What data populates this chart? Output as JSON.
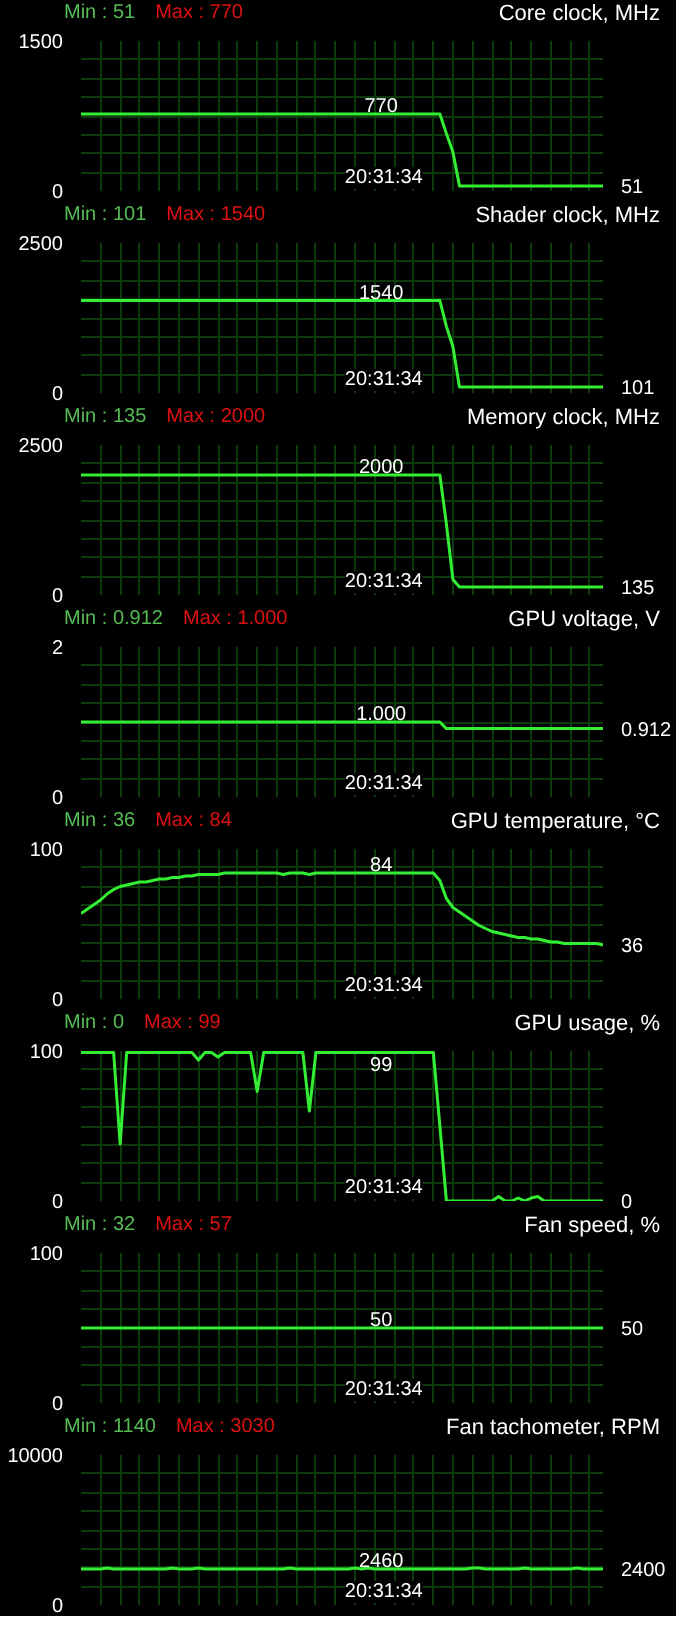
{
  "chart_data": [
    {
      "type": "line",
      "title": "Core clock, MHz",
      "categories": [
        null,
        null,
        null,
        null,
        null,
        null,
        null,
        null,
        null,
        null,
        null,
        null,
        null,
        null,
        null,
        null,
        null,
        null,
        null,
        null,
        null,
        null,
        null,
        null,
        null,
        null,
        null,
        null,
        null,
        null,
        null,
        null,
        null,
        null,
        null,
        null,
        null,
        null,
        null,
        null,
        null,
        null,
        null,
        null,
        null,
        null,
        null,
        null,
        null,
        null,
        null,
        null,
        null,
        null,
        null,
        null,
        null,
        null,
        null,
        null,
        null,
        null,
        null,
        null,
        null,
        null,
        null,
        null,
        null,
        null,
        null,
        null,
        null,
        null,
        null,
        null,
        null,
        null,
        null,
        null,
        null
      ],
      "ylim": [
        0,
        1500
      ],
      "tick_labels": "y",
      "grid": true,
      "yticks": [
        0,
        {
          "value": 187.5,
          "label": null
        },
        {
          "value": 375,
          "label": null
        },
        {
          "value": 562.5,
          "label": null
        },
        {
          "value": 750,
          "label": null
        },
        {
          "value": 937.5,
          "label": null
        },
        {
          "value": 1125,
          "label": null
        },
        {
          "value": 1312.5,
          "label": null
        },
        1500
      ],
      "series": [
        {
          "color": "#33ee33",
          "values": [
            770,
            770,
            770,
            770,
            770,
            770,
            770,
            770,
            770,
            770,
            770,
            770,
            770,
            770,
            770,
            770,
            770,
            770,
            770,
            770,
            770,
            770,
            770,
            770,
            770,
            770,
            770,
            770,
            770,
            770,
            770,
            770,
            770,
            770,
            770,
            770,
            770,
            770,
            770,
            770,
            770,
            770,
            770,
            770,
            770,
            770,
            770,
            770,
            770,
            770,
            770,
            770,
            770,
            770,
            770,
            770,
            574,
            389,
            51,
            51,
            51,
            51,
            51,
            51,
            51,
            51,
            51,
            51,
            51,
            51,
            51,
            51,
            51,
            51,
            51,
            51,
            51,
            51,
            51,
            51,
            51
          ]
        }
      ],
      "annotations": [
        "Min : 51",
        "Max : 770",
        "20:31:34",
        "51",
        "770"
      ]
    },
    {
      "type": "line",
      "title": "Shader clock, MHz",
      "categories": [
        null,
        null,
        null,
        null,
        null,
        null,
        null,
        null,
        null,
        null,
        null,
        null,
        null,
        null,
        null,
        null,
        null,
        null,
        null,
        null,
        null,
        null,
        null,
        null,
        null,
        null,
        null,
        null,
        null,
        null,
        null,
        null,
        null,
        null,
        null,
        null,
        null,
        null,
        null,
        null,
        null,
        null,
        null,
        null,
        null,
        null,
        null,
        null,
        null,
        null,
        null,
        null,
        null,
        null,
        null,
        null,
        null,
        null,
        null,
        null,
        null,
        null,
        null,
        null,
        null,
        null,
        null,
        null,
        null,
        null,
        null,
        null,
        null,
        null,
        null,
        null,
        null,
        null,
        null,
        null,
        null
      ],
      "ylim": [
        0,
        2500
      ],
      "tick_labels": "y",
      "grid": true,
      "yticks": [
        0,
        {
          "value": 312.5,
          "label": null
        },
        {
          "value": 625,
          "label": null
        },
        {
          "value": 937.5,
          "label": null
        },
        {
          "value": 1250,
          "label": null
        },
        {
          "value": 1562.5,
          "label": null
        },
        {
          "value": 1875,
          "label": null
        },
        {
          "value": 2187.5,
          "label": null
        },
        2500
      ],
      "series": [
        {
          "color": "#33ee33",
          "values": [
            1540,
            1540,
            1540,
            1540,
            1540,
            1540,
            1540,
            1540,
            1540,
            1540,
            1540,
            1540,
            1540,
            1540,
            1540,
            1540,
            1540,
            1540,
            1540,
            1540,
            1540,
            1540,
            1540,
            1540,
            1540,
            1540,
            1540,
            1540,
            1540,
            1540,
            1540,
            1540,
            1540,
            1540,
            1540,
            1540,
            1540,
            1540,
            1540,
            1540,
            1540,
            1540,
            1540,
            1540,
            1540,
            1540,
            1540,
            1540,
            1540,
            1540,
            1540,
            1540,
            1540,
            1540,
            1540,
            1540,
            1111,
            772,
            101,
            101,
            101,
            101,
            101,
            101,
            101,
            101,
            101,
            101,
            101,
            101,
            101,
            101,
            101,
            101,
            101,
            101,
            101,
            101,
            101,
            101,
            101
          ]
        }
      ],
      "annotations": [
        "Min : 101",
        "Max : 1540",
        "20:31:34",
        "101",
        "1540"
      ]
    },
    {
      "type": "line",
      "title": "Memory clock, MHz",
      "categories": [
        null,
        null,
        null,
        null,
        null,
        null,
        null,
        null,
        null,
        null,
        null,
        null,
        null,
        null,
        null,
        null,
        null,
        null,
        null,
        null,
        null,
        null,
        null,
        null,
        null,
        null,
        null,
        null,
        null,
        null,
        null,
        null,
        null,
        null,
        null,
        null,
        null,
        null,
        null,
        null,
        null,
        null,
        null,
        null,
        null,
        null,
        null,
        null,
        null,
        null,
        null,
        null,
        null,
        null,
        null,
        null,
        null,
        null,
        null,
        null,
        null,
        null,
        null,
        null,
        null,
        null,
        null,
        null,
        null,
        null,
        null,
        null,
        null,
        null,
        null,
        null,
        null,
        null,
        null,
        null,
        null
      ],
      "ylim": [
        0,
        2500
      ],
      "tick_labels": "y",
      "grid": true,
      "yticks": [
        0,
        {
          "value": 312.5,
          "label": null
        },
        {
          "value": 625,
          "label": null
        },
        {
          "value": 937.5,
          "label": null
        },
        {
          "value": 1250,
          "label": null
        },
        {
          "value": 1562.5,
          "label": null
        },
        {
          "value": 1875,
          "label": null
        },
        {
          "value": 2187.5,
          "label": null
        },
        2500
      ],
      "series": [
        {
          "color": "#33ee33",
          "values": [
            2000,
            2000,
            2000,
            2000,
            2000,
            2000,
            2000,
            2000,
            2000,
            2000,
            2000,
            2000,
            2000,
            2000,
            2000,
            2000,
            2000,
            2000,
            2000,
            2000,
            2000,
            2000,
            2000,
            2000,
            2000,
            2000,
            2000,
            2000,
            2000,
            2000,
            2000,
            2000,
            2000,
            2000,
            2000,
            2000,
            2000,
            2000,
            2000,
            2000,
            2000,
            2000,
            2000,
            2000,
            2000,
            2000,
            2000,
            2000,
            2000,
            2000,
            2000,
            2000,
            2000,
            2000,
            2000,
            2000,
            1183,
            257,
            135,
            135,
            135,
            135,
            135,
            135,
            135,
            135,
            135,
            135,
            135,
            135,
            135,
            135,
            135,
            135,
            135,
            135,
            135,
            135,
            135,
            135,
            135
          ]
        }
      ],
      "annotations": [
        "Min : 135",
        "Max : 2000",
        "20:31:34",
        "135",
        "2000"
      ]
    },
    {
      "type": "line",
      "title": "GPU voltage, V",
      "categories": [
        null,
        null,
        null,
        null,
        null,
        null,
        null,
        null,
        null,
        null,
        null,
        null,
        null,
        null,
        null,
        null,
        null,
        null,
        null,
        null,
        null,
        null,
        null,
        null,
        null,
        null,
        null,
        null,
        null,
        null,
        null,
        null,
        null,
        null,
        null,
        null,
        null,
        null,
        null,
        null,
        null,
        null,
        null,
        null,
        null,
        null,
        null,
        null,
        null,
        null,
        null,
        null,
        null,
        null,
        null,
        null,
        null,
        null,
        null,
        null,
        null,
        null,
        null,
        null,
        null,
        null,
        null,
        null,
        null,
        null,
        null,
        null,
        null,
        null,
        null,
        null,
        null,
        null,
        null,
        null,
        null
      ],
      "ylim": [
        0,
        2
      ],
      "tick_labels": "y",
      "grid": true,
      "yticks": [
        0,
        {
          "value": 0.25,
          "label": null
        },
        {
          "value": 0.5,
          "label": null
        },
        {
          "value": 0.75,
          "label": null
        },
        {
          "value": 1,
          "label": null
        },
        {
          "value": 1.25,
          "label": null
        },
        {
          "value": 1.5,
          "label": null
        },
        {
          "value": 1.75,
          "label": null
        },
        2
      ],
      "series": [
        {
          "color": "#33ee33",
          "values": [
            1.0,
            1.0,
            1.0,
            1.0,
            1.0,
            1.0,
            1.0,
            1.0,
            1.0,
            1.0,
            1.0,
            1.0,
            1.0,
            1.0,
            1.0,
            1.0,
            1.0,
            1.0,
            1.0,
            1.0,
            1.0,
            1.0,
            1.0,
            1.0,
            1.0,
            1.0,
            1.0,
            1.0,
            1.0,
            1.0,
            1.0,
            1.0,
            1.0,
            1.0,
            1.0,
            1.0,
            1.0,
            1.0,
            1.0,
            1.0,
            1.0,
            1.0,
            1.0,
            1.0,
            1.0,
            1.0,
            1.0,
            1.0,
            1.0,
            1.0,
            1.0,
            1.0,
            1.0,
            1.0,
            1.0,
            1.0,
            0.912,
            0.912,
            0.912,
            0.912,
            0.912,
            0.912,
            0.912,
            0.912,
            0.912,
            0.912,
            0.912,
            0.912,
            0.912,
            0.912,
            0.912,
            0.912,
            0.912,
            0.912,
            0.912,
            0.912,
            0.912,
            0.912,
            0.912,
            0.912,
            0.912
          ]
        }
      ],
      "annotations": [
        "Min : 0.912",
        "Max : 1.000",
        "20:31:34",
        "0.912",
        "1.000"
      ]
    },
    {
      "type": "line",
      "title": "GPU temperature, °C",
      "categories": [
        null,
        null,
        null,
        null,
        null,
        null,
        null,
        null,
        null,
        null,
        null,
        null,
        null,
        null,
        null,
        null,
        null,
        null,
        null,
        null,
        null,
        null,
        null,
        null,
        null,
        null,
        null,
        null,
        null,
        null,
        null,
        null,
        null,
        null,
        null,
        null,
        null,
        null,
        null,
        null,
        null,
        null,
        null,
        null,
        null,
        null,
        null,
        null,
        null,
        null,
        null,
        null,
        null,
        null,
        null,
        null,
        null,
        null,
        null,
        null,
        null,
        null,
        null,
        null,
        null,
        null,
        null,
        null,
        null,
        null,
        null,
        null,
        null,
        null,
        null,
        null,
        null,
        null,
        null,
        null,
        null
      ],
      "ylim": [
        0,
        100
      ],
      "tick_labels": "y",
      "grid": true,
      "yticks": [
        0,
        {
          "value": 12.5,
          "label": null
        },
        {
          "value": 25,
          "label": null
        },
        {
          "value": 37.5,
          "label": null
        },
        {
          "value": 50,
          "label": null
        },
        {
          "value": 62.5,
          "label": null
        },
        {
          "value": 75,
          "label": null
        },
        {
          "value": 87.5,
          "label": null
        },
        100
      ],
      "series": [
        {
          "color": "#33ee33",
          "values": [
            57,
            60,
            63,
            66,
            70,
            73,
            75,
            76,
            77,
            78,
            78,
            79,
            80,
            80,
            81,
            81,
            82,
            82,
            83,
            83,
            83,
            83,
            84,
            84,
            84,
            84,
            84,
            84,
            84,
            84,
            84,
            83,
            84,
            84,
            84,
            83,
            84,
            84,
            84,
            84,
            84,
            84,
            84,
            84,
            84,
            84,
            84,
            84,
            84,
            84,
            84,
            84,
            84,
            84,
            84,
            79,
            67,
            61,
            58,
            55,
            52,
            49,
            47,
            45,
            44,
            43,
            42,
            41,
            41,
            40,
            40,
            39,
            38,
            38,
            37,
            37,
            37,
            37,
            37,
            37,
            36
          ]
        }
      ],
      "annotations": [
        "Min : 36",
        "Max : 84",
        "20:31:34",
        "36",
        "84"
      ]
    },
    {
      "type": "line",
      "title": "GPU usage, %",
      "categories": [
        null,
        null,
        null,
        null,
        null,
        null,
        null,
        null,
        null,
        null,
        null,
        null,
        null,
        null,
        null,
        null,
        null,
        null,
        null,
        null,
        null,
        null,
        null,
        null,
        null,
        null,
        null,
        null,
        null,
        null,
        null,
        null,
        null,
        null,
        null,
        null,
        null,
        null,
        null,
        null,
        null,
        null,
        null,
        null,
        null,
        null,
        null,
        null,
        null,
        null,
        null,
        null,
        null,
        null,
        null,
        null,
        null,
        null,
        null,
        null,
        null,
        null,
        null,
        null,
        null,
        null,
        null,
        null,
        null,
        null,
        null,
        null,
        null,
        null,
        null,
        null,
        null,
        null,
        null,
        null,
        null
      ],
      "ylim": [
        0,
        100
      ],
      "tick_labels": "y",
      "grid": true,
      "yticks": [
        0,
        {
          "value": 12.5,
          "label": null
        },
        {
          "value": 25,
          "label": null
        },
        {
          "value": 37.5,
          "label": null
        },
        {
          "value": 50,
          "label": null
        },
        {
          "value": 62.5,
          "label": null
        },
        {
          "value": 75,
          "label": null
        },
        {
          "value": 87.5,
          "label": null
        },
        100
      ],
      "series": [
        {
          "color": "#33ee33",
          "values": [
            99,
            99,
            99,
            99,
            99,
            99,
            38,
            99,
            99,
            99,
            99,
            99,
            99,
            99,
            99,
            99,
            99,
            99,
            94,
            99,
            99,
            96,
            99,
            99,
            99,
            99,
            99,
            73,
            99,
            99,
            99,
            99,
            99,
            99,
            99,
            60,
            99,
            99,
            99,
            99,
            99,
            99,
            99,
            99,
            99,
            99,
            99,
            99,
            99,
            99,
            99,
            99,
            99,
            99,
            99,
            50,
            0,
            0,
            0,
            0,
            0,
            0,
            0,
            0,
            3,
            0,
            0,
            2,
            0,
            2,
            3,
            0,
            0,
            0,
            0,
            0,
            0,
            0,
            0,
            0,
            0
          ]
        }
      ],
      "annotations": [
        "Min : 0",
        "Max : 99",
        "20:31:34",
        "0",
        "99"
      ]
    },
    {
      "type": "line",
      "title": "Fan speed, %",
      "categories": [
        null,
        null,
        null,
        null,
        null,
        null,
        null,
        null,
        null,
        null,
        null,
        null,
        null,
        null,
        null,
        null,
        null,
        null,
        null,
        null,
        null,
        null,
        null,
        null,
        null,
        null,
        null,
        null,
        null,
        null,
        null,
        null,
        null,
        null,
        null,
        null,
        null,
        null,
        null,
        null,
        null,
        null,
        null,
        null,
        null,
        null,
        null,
        null,
        null,
        null,
        null,
        null,
        null,
        null,
        null,
        null,
        null,
        null,
        null,
        null,
        null,
        null,
        null,
        null,
        null,
        null,
        null,
        null,
        null,
        null,
        null,
        null,
        null,
        null,
        null,
        null,
        null,
        null,
        null,
        null,
        null
      ],
      "ylim": [
        0,
        100
      ],
      "tick_labels": "y",
      "grid": true,
      "yticks": [
        0,
        {
          "value": 12.5,
          "label": null
        },
        {
          "value": 25,
          "label": null
        },
        {
          "value": 37.5,
          "label": null
        },
        {
          "value": 62.5,
          "label": null
        },
        {
          "value": 75,
          "label": null
        },
        {
          "value": 87.5,
          "label": null
        },
        100
      ],
      "series": [
        {
          "color": "#33ee33",
          "values": [
            50,
            50,
            50,
            50,
            50,
            50,
            50,
            50,
            50,
            50,
            50,
            50,
            50,
            50,
            50,
            50,
            50,
            50,
            50,
            50,
            50,
            50,
            50,
            50,
            50,
            50,
            50,
            50,
            50,
            50,
            50,
            50,
            50,
            50,
            50,
            50,
            50,
            50,
            50,
            50,
            50,
            50,
            50,
            50,
            50,
            50,
            50,
            50,
            50,
            50,
            50,
            50,
            50,
            50,
            50,
            50,
            50,
            50,
            50,
            50,
            50,
            50,
            50,
            50,
            50,
            50,
            50,
            50,
            50,
            50,
            50,
            50,
            50,
            50,
            50,
            50,
            50,
            50,
            50,
            50,
            50
          ]
        }
      ],
      "annotations": [
        "Min : 32",
        "Max : 57",
        "20:31:34",
        "50",
        "50"
      ]
    },
    {
      "type": "line",
      "title": "Fan tachometer, RPM",
      "categories": [
        null,
        null,
        null,
        null,
        null,
        null,
        null,
        null,
        null,
        null,
        null,
        null,
        null,
        null,
        null,
        null,
        null,
        null,
        null,
        null,
        null,
        null,
        null,
        null,
        null,
        null,
        null,
        null,
        null,
        null,
        null,
        null,
        null,
        null,
        null,
        null,
        null,
        null,
        null,
        null,
        null,
        null,
        null,
        null,
        null,
        null,
        null,
        null,
        null,
        null,
        null,
        null,
        null,
        null,
        null,
        null,
        null,
        null,
        null,
        null,
        null,
        null,
        null,
        null,
        null,
        null,
        null,
        null,
        null,
        null,
        null,
        null,
        null,
        null,
        null,
        null,
        null,
        null,
        null,
        null,
        null
      ],
      "ylim": [
        0,
        10000
      ],
      "tick_labels": "y",
      "grid": true,
      "yticks": [
        0,
        {
          "value": 1250,
          "label": null
        },
        {
          "value": 2500,
          "label": null
        },
        {
          "value": 3750,
          "label": null
        },
        {
          "value": 5000,
          "label": null
        },
        {
          "value": 6250,
          "label": null
        },
        {
          "value": 7500,
          "label": null
        },
        {
          "value": 8750,
          "label": null
        },
        10000
      ],
      "series": [
        {
          "color": "#33ee33",
          "values": [
            2400,
            2400,
            2400,
            2400,
            2460,
            2400,
            2400,
            2400,
            2400,
            2400,
            2400,
            2400,
            2400,
            2400,
            2460,
            2400,
            2400,
            2400,
            2460,
            2400,
            2400,
            2400,
            2400,
            2400,
            2400,
            2400,
            2400,
            2400,
            2400,
            2400,
            2400,
            2400,
            2460,
            2400,
            2400,
            2400,
            2400,
            2400,
            2400,
            2400,
            2400,
            2400,
            2460,
            2400,
            2460,
            2400,
            2400,
            2400,
            2400,
            2400,
            2400,
            2400,
            2400,
            2400,
            2400,
            2400,
            2400,
            2400,
            2400,
            2400,
            2460,
            2460,
            2400,
            2400,
            2400,
            2400,
            2400,
            2400,
            2460,
            2400,
            2400,
            2400,
            2400,
            2400,
            2400,
            2400,
            2460,
            2400,
            2400,
            2400,
            2400
          ]
        }
      ],
      "annotations": [
        "Min : 1140",
        "Max : 3030",
        "20:31:34",
        "2400",
        "2460"
      ]
    }
  ]
}
